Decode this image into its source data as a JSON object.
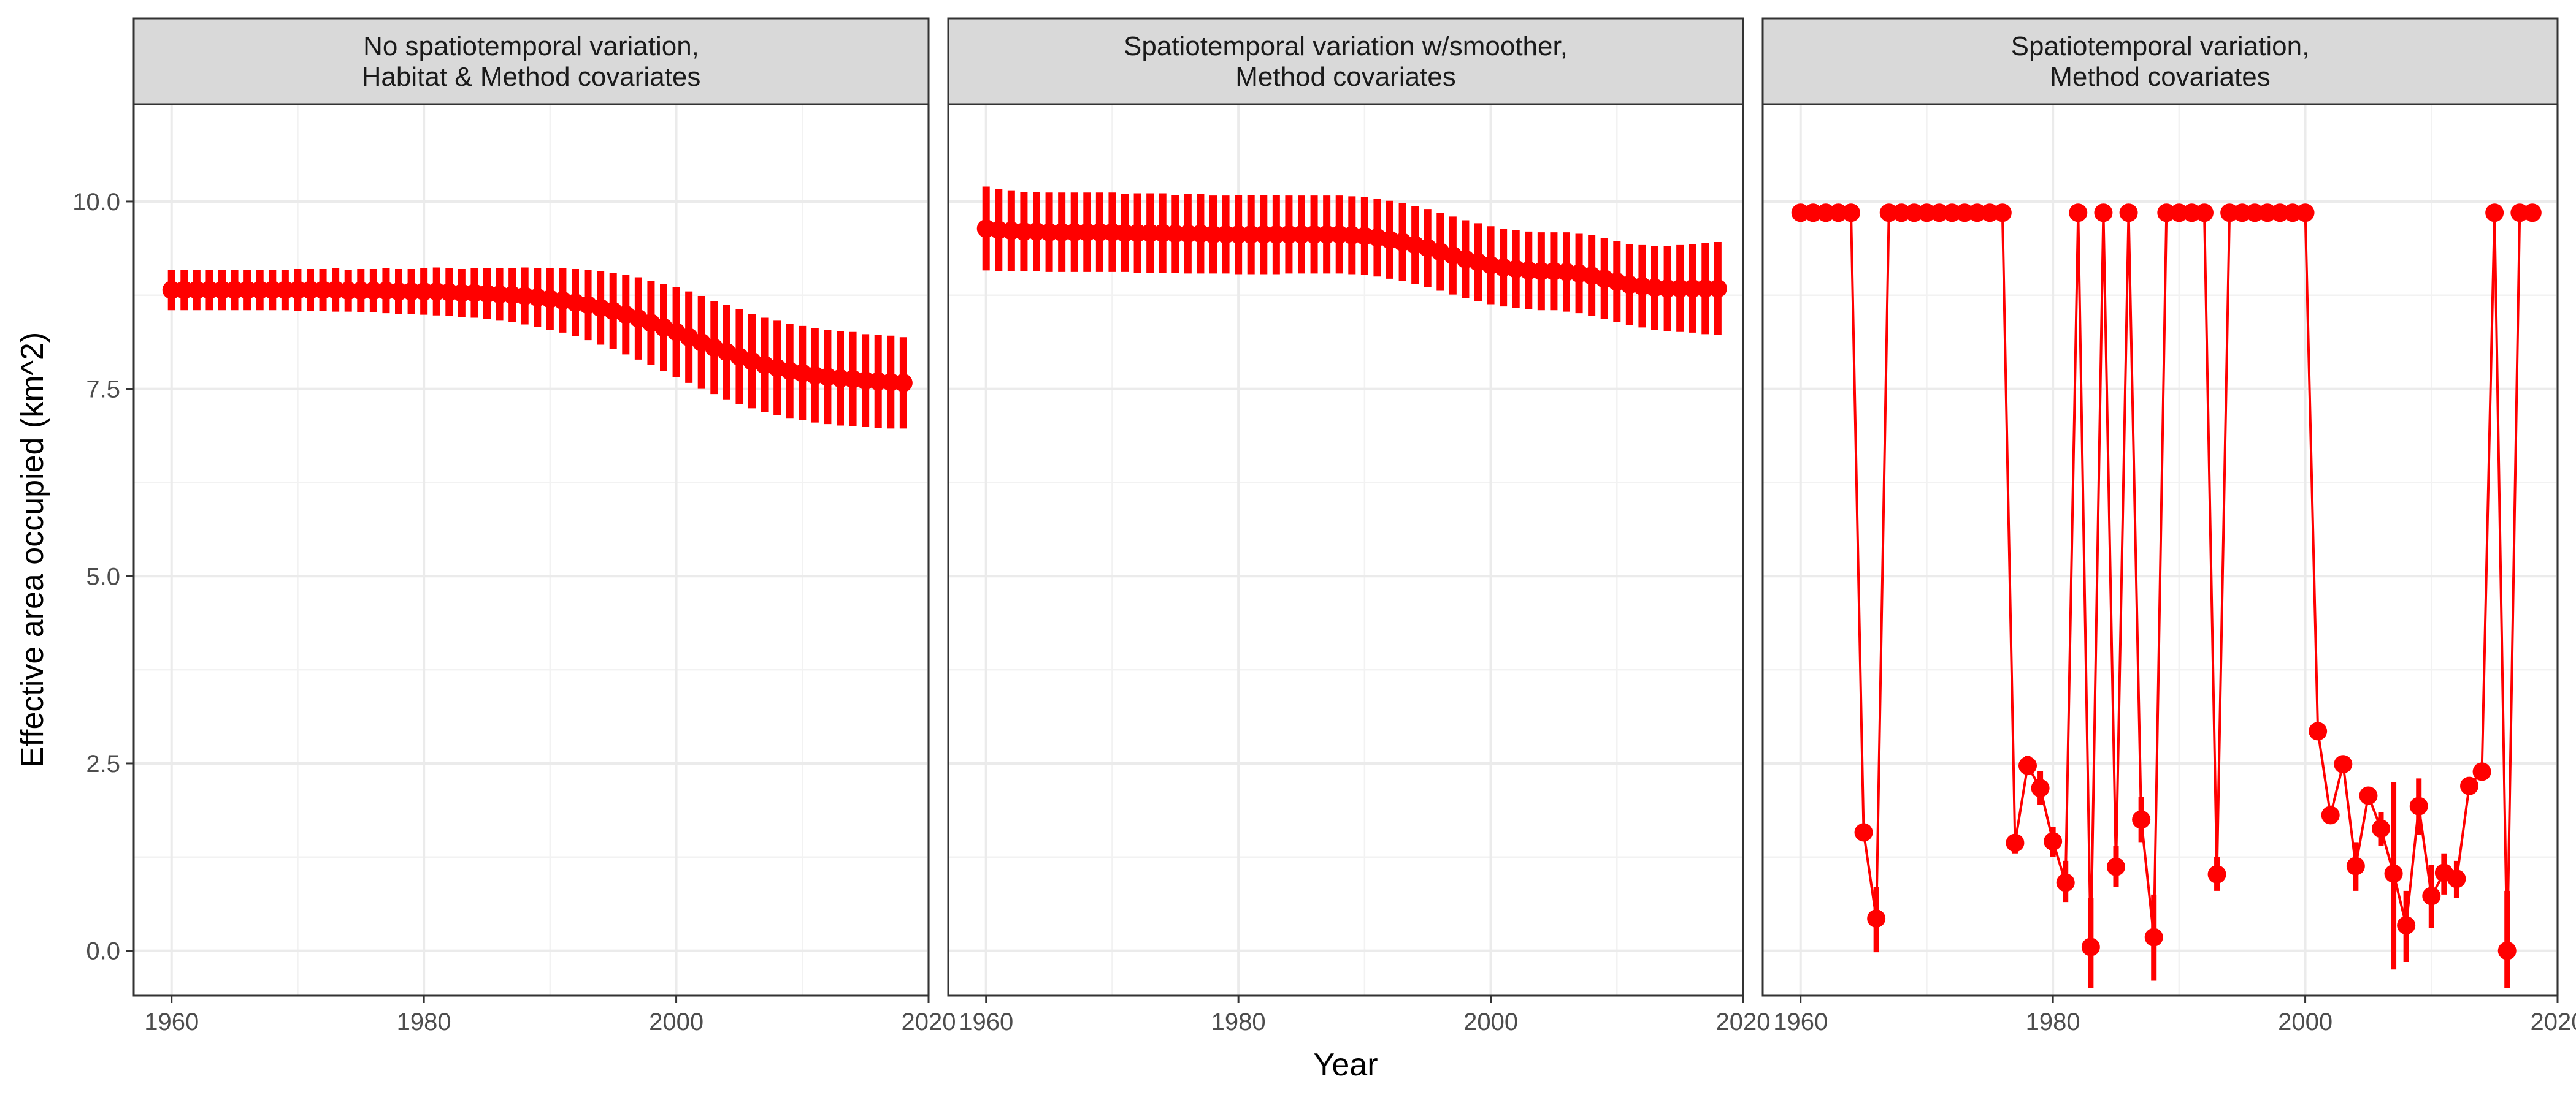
{
  "chart_data": {
    "type": "line",
    "xlabel": "Year",
    "ylabel": "Effective area occupied (km^2)",
    "xlim": [
      1957,
      2020
    ],
    "ylim": [
      -0.6,
      11.3
    ],
    "x_ticks": [
      1960,
      1980,
      2000,
      2020
    ],
    "x_tick_labels": [
      "1960",
      "1980",
      "2000",
      "2020"
    ],
    "y_ticks": [
      0,
      2.5,
      5,
      7.5,
      10
    ],
    "y_tick_labels": [
      "0.0",
      "2.5",
      "5.0",
      "7.5",
      "10.0"
    ],
    "color": "#ff0000",
    "grid": true,
    "panels": [
      {
        "title_lines": [
          "No spatiotemporal variation,",
          "Habitat & Method covariates"
        ],
        "x": [
          1960,
          1961,
          1962,
          1963,
          1964,
          1965,
          1966,
          1967,
          1968,
          1969,
          1970,
          1971,
          1972,
          1973,
          1974,
          1975,
          1976,
          1977,
          1978,
          1979,
          1980,
          1981,
          1982,
          1983,
          1984,
          1985,
          1986,
          1987,
          1988,
          1989,
          1990,
          1991,
          1992,
          1993,
          1994,
          1995,
          1996,
          1997,
          1998,
          1999,
          2000,
          2001,
          2002,
          2003,
          2004,
          2005,
          2006,
          2007,
          2008,
          2009,
          2010,
          2011,
          2012,
          2013,
          2014,
          2015,
          2016,
          2017,
          2018
        ],
        "y": [
          8.82,
          8.82,
          8.82,
          8.82,
          8.82,
          8.82,
          8.82,
          8.82,
          8.82,
          8.82,
          8.82,
          8.82,
          8.82,
          8.82,
          8.81,
          8.81,
          8.81,
          8.81,
          8.8,
          8.8,
          8.8,
          8.8,
          8.79,
          8.78,
          8.78,
          8.77,
          8.76,
          8.75,
          8.74,
          8.72,
          8.7,
          8.68,
          8.65,
          8.62,
          8.58,
          8.54,
          8.49,
          8.44,
          8.38,
          8.32,
          8.26,
          8.19,
          8.12,
          8.05,
          7.99,
          7.93,
          7.87,
          7.82,
          7.78,
          7.74,
          7.71,
          7.68,
          7.66,
          7.64,
          7.63,
          7.61,
          7.6,
          7.59,
          7.58
        ],
        "lower": [
          8.55,
          8.55,
          8.55,
          8.55,
          8.55,
          8.55,
          8.55,
          8.55,
          8.55,
          8.55,
          8.54,
          8.54,
          8.54,
          8.53,
          8.53,
          8.52,
          8.52,
          8.51,
          8.5,
          8.5,
          8.49,
          8.48,
          8.47,
          8.46,
          8.45,
          8.43,
          8.41,
          8.39,
          8.36,
          8.33,
          8.29,
          8.25,
          8.2,
          8.15,
          8.09,
          8.03,
          7.96,
          7.89,
          7.82,
          7.74,
          7.66,
          7.58,
          7.5,
          7.43,
          7.36,
          7.3,
          7.24,
          7.19,
          7.15,
          7.11,
          7.08,
          7.05,
          7.03,
          7.01,
          7.0,
          6.99,
          6.98,
          6.97,
          6.97
        ],
        "upper": [
          9.09,
          9.09,
          9.09,
          9.09,
          9.09,
          9.09,
          9.09,
          9.09,
          9.09,
          9.09,
          9.1,
          9.1,
          9.1,
          9.11,
          9.09,
          9.1,
          9.1,
          9.11,
          9.1,
          9.1,
          9.11,
          9.12,
          9.11,
          9.1,
          9.11,
          9.11,
          9.11,
          9.11,
          9.12,
          9.11,
          9.11,
          9.11,
          9.1,
          9.09,
          9.07,
          9.05,
          9.02,
          8.99,
          8.94,
          8.9,
          8.86,
          8.8,
          8.74,
          8.67,
          8.62,
          8.56,
          8.5,
          8.45,
          8.41,
          8.37,
          8.34,
          8.31,
          8.29,
          8.27,
          8.26,
          8.23,
          8.22,
          8.21,
          8.19
        ]
      },
      {
        "title_lines": [
          "Spatiotemporal variation w/smoother,",
          "Method covariates"
        ],
        "x": [
          1960,
          1961,
          1962,
          1963,
          1964,
          1965,
          1966,
          1967,
          1968,
          1969,
          1970,
          1971,
          1972,
          1973,
          1974,
          1975,
          1976,
          1977,
          1978,
          1979,
          1980,
          1981,
          1982,
          1983,
          1984,
          1985,
          1986,
          1987,
          1988,
          1989,
          1990,
          1991,
          1992,
          1993,
          1994,
          1995,
          1996,
          1997,
          1998,
          1999,
          2000,
          2001,
          2002,
          2003,
          2004,
          2005,
          2006,
          2007,
          2008,
          2009,
          2010,
          2011,
          2012,
          2013,
          2014,
          2015,
          2016,
          2017,
          2018
        ],
        "y": [
          9.64,
          9.62,
          9.61,
          9.6,
          9.6,
          9.59,
          9.59,
          9.59,
          9.59,
          9.59,
          9.59,
          9.58,
          9.58,
          9.58,
          9.58,
          9.57,
          9.57,
          9.57,
          9.56,
          9.56,
          9.56,
          9.56,
          9.56,
          9.56,
          9.56,
          9.56,
          9.56,
          9.56,
          9.56,
          9.55,
          9.54,
          9.52,
          9.49,
          9.46,
          9.42,
          9.38,
          9.33,
          9.28,
          9.23,
          9.19,
          9.15,
          9.12,
          9.1,
          9.08,
          9.07,
          9.07,
          9.06,
          9.04,
          9.01,
          8.97,
          8.93,
          8.89,
          8.87,
          8.85,
          8.84,
          8.84,
          8.84,
          8.84,
          8.84
        ],
        "lower": [
          9.08,
          9.07,
          9.07,
          9.07,
          9.07,
          9.06,
          9.06,
          9.06,
          9.06,
          9.06,
          9.06,
          9.06,
          9.05,
          9.05,
          9.05,
          9.05,
          9.04,
          9.04,
          9.04,
          9.04,
          9.03,
          9.03,
          9.03,
          9.03,
          9.04,
          9.04,
          9.04,
          9.04,
          9.04,
          9.03,
          9.02,
          9.0,
          8.97,
          8.94,
          8.9,
          8.86,
          8.81,
          8.76,
          8.71,
          8.67,
          8.63,
          8.6,
          8.58,
          8.56,
          8.55,
          8.55,
          8.53,
          8.51,
          8.47,
          8.43,
          8.39,
          8.35,
          8.32,
          8.29,
          8.27,
          8.26,
          8.25,
          8.23,
          8.22
        ],
        "upper": [
          10.2,
          10.17,
          10.15,
          10.13,
          10.13,
          10.12,
          10.12,
          10.12,
          10.12,
          10.12,
          10.12,
          10.1,
          10.11,
          10.11,
          10.11,
          10.09,
          10.1,
          10.1,
          10.08,
          10.08,
          10.09,
          10.09,
          10.09,
          10.09,
          10.08,
          10.08,
          10.08,
          10.08,
          10.08,
          10.07,
          10.06,
          10.04,
          10.01,
          9.98,
          9.94,
          9.9,
          9.85,
          9.8,
          9.75,
          9.71,
          9.67,
          9.64,
          9.62,
          9.6,
          9.59,
          9.59,
          9.59,
          9.57,
          9.55,
          9.51,
          9.47,
          9.43,
          9.42,
          9.41,
          9.41,
          9.42,
          9.43,
          9.45,
          9.46
        ]
      },
      {
        "title_lines": [
          "Spatiotemporal variation,",
          "Method covariates"
        ],
        "x": [
          1960,
          1961,
          1962,
          1963,
          1964,
          1965,
          1966,
          1967,
          1968,
          1969,
          1970,
          1971,
          1972,
          1973,
          1974,
          1975,
          1976,
          1977,
          1978,
          1979,
          1980,
          1981,
          1982,
          1983,
          1984,
          1985,
          1986,
          1987,
          1988,
          1989,
          1990,
          1991,
          1992,
          1993,
          1994,
          1995,
          1996,
          1997,
          1998,
          1999,
          2000,
          2001,
          2002,
          2003,
          2004,
          2005,
          2006,
          2007,
          2008,
          2009,
          2010,
          2011,
          2012,
          2013,
          2014,
          2015,
          2016,
          2017,
          2018
        ],
        "y": [
          9.85,
          9.85,
          9.85,
          9.85,
          9.85,
          1.58,
          0.43,
          9.85,
          9.85,
          9.85,
          9.85,
          9.85,
          9.85,
          9.85,
          9.85,
          9.85,
          9.85,
          1.44,
          2.47,
          2.17,
          1.46,
          0.91,
          9.85,
          0.05,
          9.85,
          1.12,
          9.85,
          1.75,
          0.18,
          9.85,
          9.85,
          9.85,
          9.85,
          1.02,
          9.85,
          9.85,
          9.85,
          9.85,
          9.85,
          9.85,
          9.85,
          2.93,
          1.81,
          2.49,
          1.13,
          2.07,
          1.63,
          1.03,
          0.34,
          1.93,
          0.73,
          1.04,
          0.96,
          2.2,
          2.39,
          9.85,
          0.0,
          9.85,
          9.85
        ],
        "lower": [
          9.85,
          9.85,
          9.85,
          9.85,
          9.85,
          1.5,
          -0.02,
          9.85,
          9.85,
          9.85,
          9.85,
          9.85,
          9.85,
          9.85,
          9.85,
          9.85,
          9.85,
          1.3,
          2.35,
          1.95,
          1.25,
          0.65,
          9.85,
          -0.5,
          9.85,
          0.85,
          9.85,
          1.45,
          -0.4,
          9.85,
          9.85,
          9.85,
          9.85,
          0.8,
          9.85,
          9.85,
          9.85,
          9.85,
          9.85,
          9.85,
          9.85,
          2.85,
          1.7,
          2.4,
          0.8,
          1.95,
          1.4,
          -0.25,
          -0.15,
          1.55,
          0.3,
          0.75,
          0.7,
          2.1,
          2.3,
          9.85,
          -0.5,
          9.85,
          9.85
        ],
        "upper": [
          9.85,
          9.85,
          9.85,
          9.85,
          9.85,
          1.65,
          0.85,
          9.85,
          9.85,
          9.85,
          9.85,
          9.85,
          9.85,
          9.85,
          9.85,
          9.85,
          9.85,
          1.55,
          2.6,
          2.4,
          1.65,
          1.2,
          9.85,
          0.7,
          9.85,
          1.4,
          9.85,
          2.05,
          0.75,
          9.85,
          9.85,
          9.85,
          9.85,
          1.25,
          9.85,
          9.85,
          9.85,
          9.85,
          9.85,
          9.85,
          9.85,
          3.0,
          1.9,
          2.6,
          1.45,
          2.15,
          1.85,
          2.25,
          0.8,
          2.3,
          1.15,
          1.3,
          1.2,
          2.3,
          2.48,
          9.85,
          0.8,
          9.85,
          9.85
        ]
      }
    ]
  }
}
